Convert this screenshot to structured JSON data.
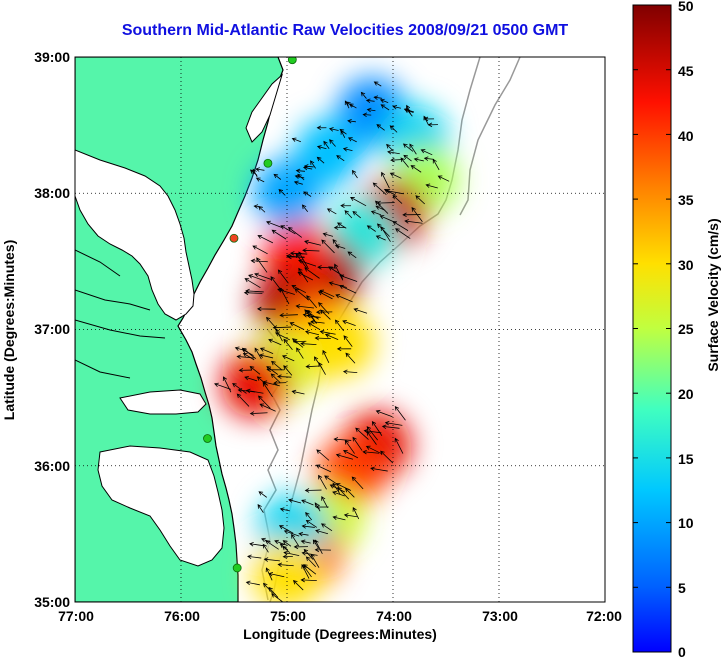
{
  "title": "Southern Mid-Atlantic Raw Velocities 2008/09/21 0500 GMT",
  "x_axis": {
    "label": "Longitude (Degrees:Minutes)",
    "ticks": [
      "77:00",
      "76:00",
      "75:00",
      "74:00",
      "73:00",
      "72:00"
    ]
  },
  "y_axis": {
    "label": "Latitude (Degrees:Minutes)",
    "ticks": [
      "39:00",
      "38:00",
      "37:00",
      "36:00",
      "35:00"
    ]
  },
  "colorbar": {
    "label": "Surface Velocity (cm/s)",
    "ticks": [
      "50",
      "45",
      "40",
      "35",
      "30",
      "25",
      "20",
      "15",
      "10",
      "5",
      "0"
    ],
    "range_cm_s": [
      0,
      50
    ],
    "colormap": "jet"
  },
  "extent": {
    "lon_west": -77,
    "lon_east": -72,
    "lat_south": 35,
    "lat_north": 39
  },
  "colors": {
    "land": "#55f5aa",
    "water": "#ffffff",
    "coastline": "#000000",
    "bathymetry": "#999999",
    "station_marker": "#22cc22",
    "station_marker_highlight": "#ee4422",
    "title": "#1010e0"
  },
  "grid": "dotted",
  "stations": [
    {
      "lon": -74.95,
      "lat": 38.98,
      "color": "#22cc22"
    },
    {
      "lon": -75.18,
      "lat": 38.22,
      "color": "#22cc22"
    },
    {
      "lon": -75.5,
      "lat": 37.67,
      "color": "#ee4422"
    },
    {
      "lon": -75.75,
      "lat": 36.2,
      "color": "#22cc22"
    },
    {
      "lon": -75.47,
      "lat": 35.25,
      "color": "#22cc22"
    }
  ],
  "velocity_regions": [
    {
      "lon": -74.2,
      "lat": 38.6,
      "speed": 8
    },
    {
      "lon": -74.6,
      "lat": 38.3,
      "speed": 12
    },
    {
      "lon": -73.8,
      "lat": 38.4,
      "speed": 14
    },
    {
      "lon": -73.7,
      "lat": 38.1,
      "speed": 24
    },
    {
      "lon": -74.0,
      "lat": 37.85,
      "speed": 46
    },
    {
      "lon": -74.3,
      "lat": 37.7,
      "speed": 16
    },
    {
      "lon": -74.6,
      "lat": 37.4,
      "speed": 48
    },
    {
      "lon": -74.9,
      "lat": 37.55,
      "speed": 42
    },
    {
      "lon": -75.0,
      "lat": 37.2,
      "speed": 47
    },
    {
      "lon": -74.7,
      "lat": 37.05,
      "speed": 38
    },
    {
      "lon": -74.9,
      "lat": 36.8,
      "speed": 30
    },
    {
      "lon": -75.1,
      "lat": 36.7,
      "speed": 26
    },
    {
      "lon": -74.5,
      "lat": 36.9,
      "speed": 30
    },
    {
      "lon": -75.3,
      "lat": 36.6,
      "speed": 44
    },
    {
      "lon": -75.0,
      "lat": 38.0,
      "speed": 10
    },
    {
      "lon": -74.15,
      "lat": 36.15,
      "speed": 44
    },
    {
      "lon": -74.4,
      "lat": 35.95,
      "speed": 40
    },
    {
      "lon": -74.6,
      "lat": 35.6,
      "speed": 26
    },
    {
      "lon": -74.8,
      "lat": 35.35,
      "speed": 38
    },
    {
      "lon": -74.95,
      "lat": 35.55,
      "speed": 14
    },
    {
      "lon": -75.0,
      "lat": 35.2,
      "speed": 30
    }
  ]
}
